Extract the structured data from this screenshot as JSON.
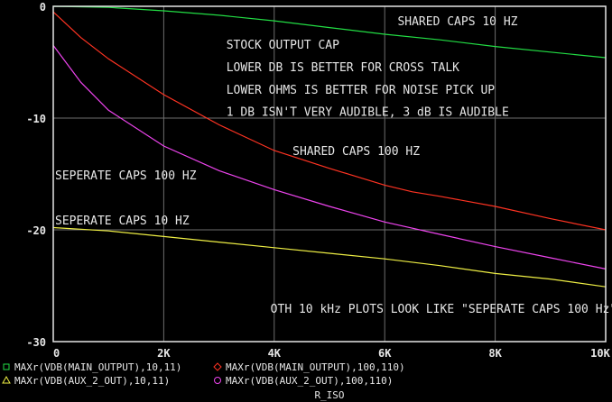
{
  "colors": {
    "background": "#000000",
    "frame": "#e6e6e6",
    "grid": "#6e6e6e",
    "text": "#e6e6e6"
  },
  "chart_data": {
    "type": "line",
    "title": "",
    "xlabel": "R_ISO",
    "ylabel": "",
    "xlim": [
      0,
      10000
    ],
    "ylim": [
      -30,
      0
    ],
    "grid": true,
    "x_ticks": [
      {
        "value": 0,
        "label": "0"
      },
      {
        "value": 2000,
        "label": "2K"
      },
      {
        "value": 4000,
        "label": "4K"
      },
      {
        "value": 6000,
        "label": "6K"
      },
      {
        "value": 8000,
        "label": "8K"
      },
      {
        "value": 10000,
        "label": "10K"
      }
    ],
    "y_ticks": [
      {
        "value": 0,
        "label": "0"
      },
      {
        "value": -10,
        "label": "-10"
      },
      {
        "value": -20,
        "label": "-20"
      },
      {
        "value": -30,
        "label": "-30"
      }
    ],
    "legend_position": "bottom",
    "series": [
      {
        "name": "MAXr(VDB(MAIN_OUTPUT),10,11)",
        "marker": "square",
        "color": "#22dd44",
        "x": [
          0,
          1000,
          2000,
          3000,
          4000,
          5000,
          6000,
          7000,
          8000,
          9000,
          10000
        ],
        "y": [
          0,
          -0.1,
          -0.4,
          -0.8,
          -1.3,
          -1.9,
          -2.5,
          -3.0,
          -3.6,
          -4.1,
          -4.6
        ]
      },
      {
        "name": "MAXr(VDB(MAIN_OUTPUT),100,110)",
        "marker": "diamond",
        "color": "#ff3322",
        "x": [
          0,
          500,
          1000,
          2000,
          3000,
          4000,
          5000,
          6000,
          6500,
          7000,
          8000,
          9000,
          10000
        ],
        "y": [
          -0.5,
          -2.8,
          -4.7,
          -7.9,
          -10.6,
          -12.9,
          -14.5,
          -16.0,
          -16.6,
          -17.0,
          -17.9,
          -19.0,
          -20.0
        ]
      },
      {
        "name": "MAXr(VDB(AUX_2_OUT),10,11)",
        "marker": "triangle",
        "color": "#eeee44",
        "x": [
          0,
          1000,
          2000,
          3000,
          4000,
          5000,
          6000,
          7000,
          8000,
          9000,
          10000
        ],
        "y": [
          -19.8,
          -20.1,
          -20.6,
          -21.1,
          -21.6,
          -22.1,
          -22.6,
          -23.2,
          -23.9,
          -24.4,
          -25.1
        ]
      },
      {
        "name": "MAXr(VDB(AUX_2_OUT),100,110)",
        "marker": "circle",
        "color": "#ee44ee",
        "x": [
          0,
          500,
          1000,
          2000,
          3000,
          4000,
          5000,
          6000,
          7000,
          8000,
          9000,
          10000
        ],
        "y": [
          -3.5,
          -6.8,
          -9.3,
          -12.5,
          -14.7,
          -16.4,
          -17.9,
          -19.3,
          -20.4,
          -21.5,
          -22.5,
          -23.5
        ]
      }
    ],
    "annotations": [
      {
        "text": "SHARED CAPS 10 HZ",
        "x": 6200,
        "y": -1.3
      },
      {
        "text": "STOCK OUTPUT CAP",
        "x": 3100,
        "y": -3.4
      },
      {
        "text": "LOWER DB IS BETTER FOR CROSS TALK",
        "x": 3100,
        "y": -5.4
      },
      {
        "text": "LOWER OHMS IS BETTER FOR NOISE PICK UP",
        "x": 3100,
        "y": -7.4
      },
      {
        "text": "1 DB ISN'T VERY AUDIBLE, 3 dB IS AUDIBLE",
        "x": 3100,
        "y": -9.4
      },
      {
        "text": "SHARED CAPS 100 HZ",
        "x": 4300,
        "y": -12.9
      },
      {
        "text": "SEPERATE CAPS 100 HZ",
        "x": 0,
        "y": -15.1
      },
      {
        "text": "SEPERATE CAPS 10 HZ",
        "x": 0,
        "y": -19.1
      },
      {
        "text": "OTH 10 kHz PLOTS LOOK LIKE \"SEPERATE CAPS 100 Hz\"",
        "x": 3900,
        "y": -27.0
      }
    ]
  }
}
